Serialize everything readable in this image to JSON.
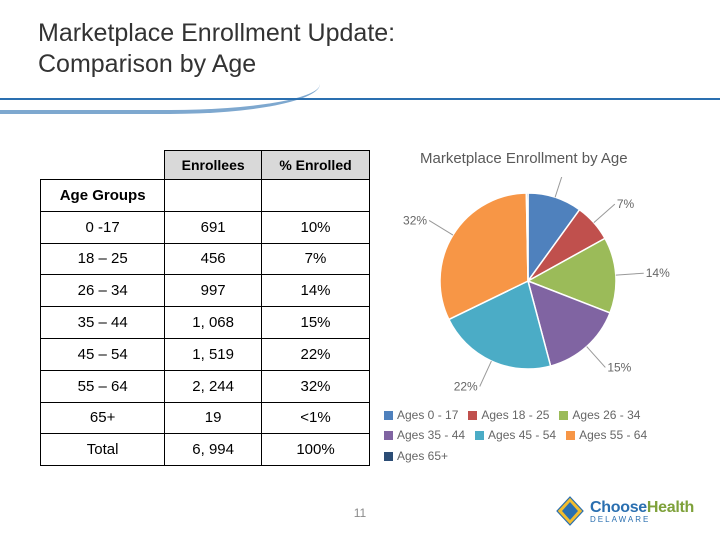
{
  "title_lines": [
    "Marketplace Enrollment Update:",
    "Comparison by Age"
  ],
  "page_number": "11",
  "table": {
    "headers": [
      "",
      "Enrollees",
      "% Enrolled"
    ],
    "subhead": "Age Groups",
    "rows": [
      {
        "group": "0 -17",
        "enrollees": "691",
        "pct": "10%"
      },
      {
        "group": "18 – 25",
        "enrollees": "456",
        "pct": "7%"
      },
      {
        "group": "26 – 34",
        "enrollees": "997",
        "pct": "14%"
      },
      {
        "group": "35 – 44",
        "enrollees": "1, 068",
        "pct": "15%"
      },
      {
        "group": "45 – 54",
        "enrollees": "1, 519",
        "pct": "22%"
      },
      {
        "group": "55 – 64",
        "enrollees": "2, 244",
        "pct": "32%"
      },
      {
        "group": "65+",
        "enrollees": "19",
        "pct": "<1%"
      }
    ],
    "total": {
      "group": "Total",
      "enrollees": "6, 994",
      "pct": "100%"
    }
  },
  "chart": {
    "title": "Marketplace Enrollment by Age",
    "type": "pie",
    "series": [
      {
        "label": "Ages 0 - 17",
        "value": 10,
        "callout": "10%",
        "color": "#4f81bd"
      },
      {
        "label": "Ages 18 - 25",
        "value": 7,
        "callout": "7%",
        "color": "#c0504d"
      },
      {
        "label": "Ages 26 - 34",
        "value": 14,
        "callout": "14%",
        "color": "#9bbb59"
      },
      {
        "label": "Ages 35 - 44",
        "value": 15,
        "callout": "15%",
        "color": "#8064a2"
      },
      {
        "label": "Ages 45 - 54",
        "value": 22,
        "callout": "22%",
        "color": "#4bacc6"
      },
      {
        "label": "Ages 55 - 64",
        "value": 32,
        "callout": "32%",
        "color": "#f79646"
      },
      {
        "label": "Ages 65+",
        "value": 0.3,
        "callout": "",
        "color": "#2c4d75"
      }
    ],
    "start_angle_deg": -90,
    "slice_border": "#ffffff",
    "callout_color": "#666666",
    "callout_fontsize": 12,
    "leader_offset": 28
  },
  "logo": {
    "brand1": "Choose",
    "brand2": "Health",
    "sub": "DELAWARE",
    "brand1_color": "#2a6fb0",
    "brand2_color": "#7ea13a",
    "diamond_color": "#f3bd2e"
  }
}
